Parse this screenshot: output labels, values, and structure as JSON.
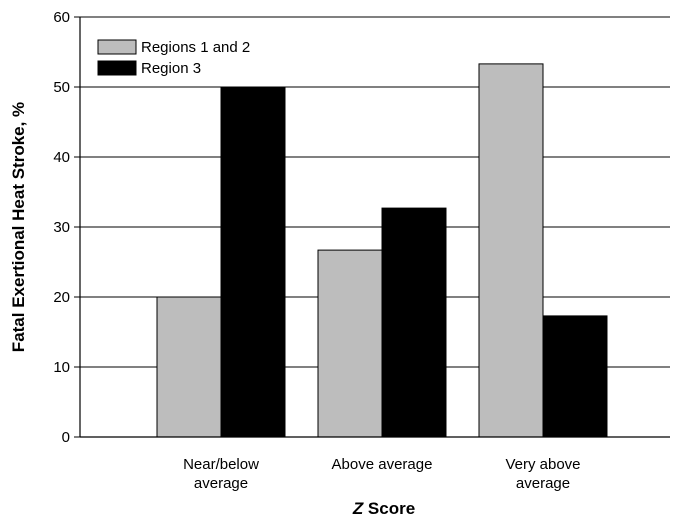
{
  "chart_data": {
    "type": "bar",
    "categories": [
      [
        "Near/below",
        "average"
      ],
      [
        "Above average"
      ],
      [
        "Very above",
        "average"
      ]
    ],
    "series": [
      {
        "name": "Regions 1 and 2",
        "values": [
          20.0,
          26.7,
          53.3
        ],
        "color": "#bdbdbd"
      },
      {
        "name": "Region 3",
        "values": [
          50.0,
          32.7,
          17.3
        ],
        "color": "#000000"
      }
    ],
    "ylim": [
      0,
      60
    ],
    "yticks": [
      0,
      10,
      20,
      30,
      40,
      50,
      60
    ],
    "ylabel": "Fatal Exertional Heat Stroke, %",
    "xlabel_italic": "Z",
    "xlabel_rest": " Score",
    "grid": "horizontal",
    "legend_position": "top-left"
  }
}
